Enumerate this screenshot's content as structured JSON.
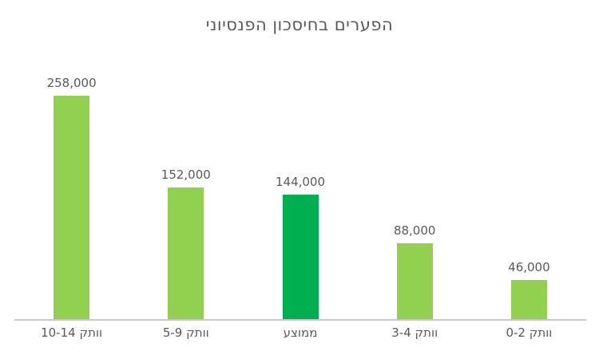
{
  "chart_data": {
    "type": "bar",
    "title": "הפערים בחיסכון הפנסיוני",
    "direction": "rtl",
    "categories": [
      "וותק 10-14",
      "וותק 5-9",
      "ממוצע",
      "וותק 3-4",
      "וותק 0-2"
    ],
    "categories_order": "left-to-right-as-displayed",
    "values": [
      258000,
      152000,
      144000,
      88000,
      46000
    ],
    "value_labels": [
      "258,000",
      "152,000",
      "144,000",
      "88,000",
      "46,000"
    ],
    "series": [
      {
        "name": "gap-in-pension-savings",
        "values": [
          258000,
          152000,
          144000,
          88000,
          46000
        ]
      }
    ],
    "highlight_category": "ממוצע",
    "ylim": [
      0,
      258000
    ],
    "grid": false,
    "legend": false,
    "xlabel": "",
    "ylabel": "",
    "colors": {
      "bar_default": "#92d050",
      "bar_highlight": "#00b050",
      "bar_colors": [
        "#92d050",
        "#92d050",
        "#00b050",
        "#92d050",
        "#92d050"
      ],
      "title_text": "#595959",
      "value_label_text": "#595959",
      "category_label_text": "#595959",
      "axis_line": "#c9c9c9",
      "background": "#ffffff"
    }
  }
}
